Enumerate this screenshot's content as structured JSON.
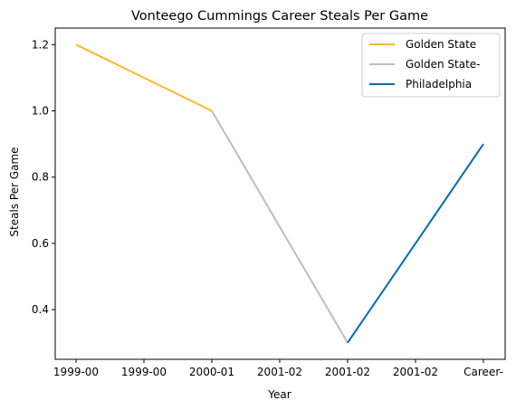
{
  "chart_data": {
    "type": "line",
    "title": "Vonteego Cummings Career Steals Per Game",
    "xlabel": "Year",
    "ylabel": "Steals Per Game",
    "x_ticks": [
      "1999-00",
      "1999-00",
      "2000-01",
      "2001-02",
      "2001-02",
      "2001-02",
      "Career-"
    ],
    "ylim": [
      0.25,
      1.25
    ],
    "y_ticks": [
      0.4,
      0.6,
      0.8,
      1.0,
      1.2
    ],
    "y_tick_labels": [
      "0.4",
      "0.6",
      "0.8",
      "1.0",
      "1.2"
    ],
    "grid": false,
    "legend_position": "top-right",
    "series": [
      {
        "name": "Golden State",
        "color": "#FDB927",
        "x": [
          0,
          2
        ],
        "values": [
          1.2,
          1.0
        ]
      },
      {
        "name": "Golden State-",
        "color": "#BEBEBE",
        "x": [
          2,
          4
        ],
        "values": [
          1.0,
          0.3
        ]
      },
      {
        "name": "Philadelphia",
        "color": "#006BB6",
        "x": [
          4,
          6
        ],
        "values": [
          0.3,
          0.9
        ]
      }
    ]
  }
}
